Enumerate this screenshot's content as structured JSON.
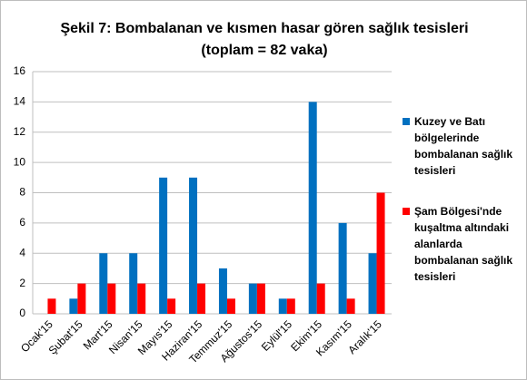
{
  "chart_data": {
    "type": "bar",
    "title": "Şekil 7: Bombalanan ve kısmen hasar gören sağlık tesisleri",
    "subtitle": "(toplam = 82 vaka)",
    "categories": [
      "Ocak'15",
      "Şubat'15",
      "Mart'15",
      "Nisan'15",
      "Mayıs'15",
      "Haziran'15",
      "Temmuz'15",
      "Ağustos'15",
      "Eylül'15",
      "Ekim'15",
      "Kasım'15",
      "Aralık'15"
    ],
    "series": [
      {
        "name": "Kuzey ve Batı bölgelerinde bombalanan sağlık tesisleri",
        "color": "#0070c0",
        "values": [
          0,
          1,
          4,
          4,
          9,
          9,
          3,
          2,
          1,
          14,
          6,
          4
        ]
      },
      {
        "name": "Şam Bölgesi'nde kuşaltma altındaki alanlarda bombalanan sağlık tesisleri",
        "color": "#ff0000",
        "values": [
          1,
          2,
          2,
          2,
          1,
          2,
          1,
          2,
          1,
          2,
          1,
          8
        ]
      }
    ],
    "ylim": [
      0,
      16
    ],
    "yticks": [
      0,
      2,
      4,
      6,
      8,
      10,
      12,
      14,
      16
    ],
    "grid": true,
    "legend": "right"
  }
}
